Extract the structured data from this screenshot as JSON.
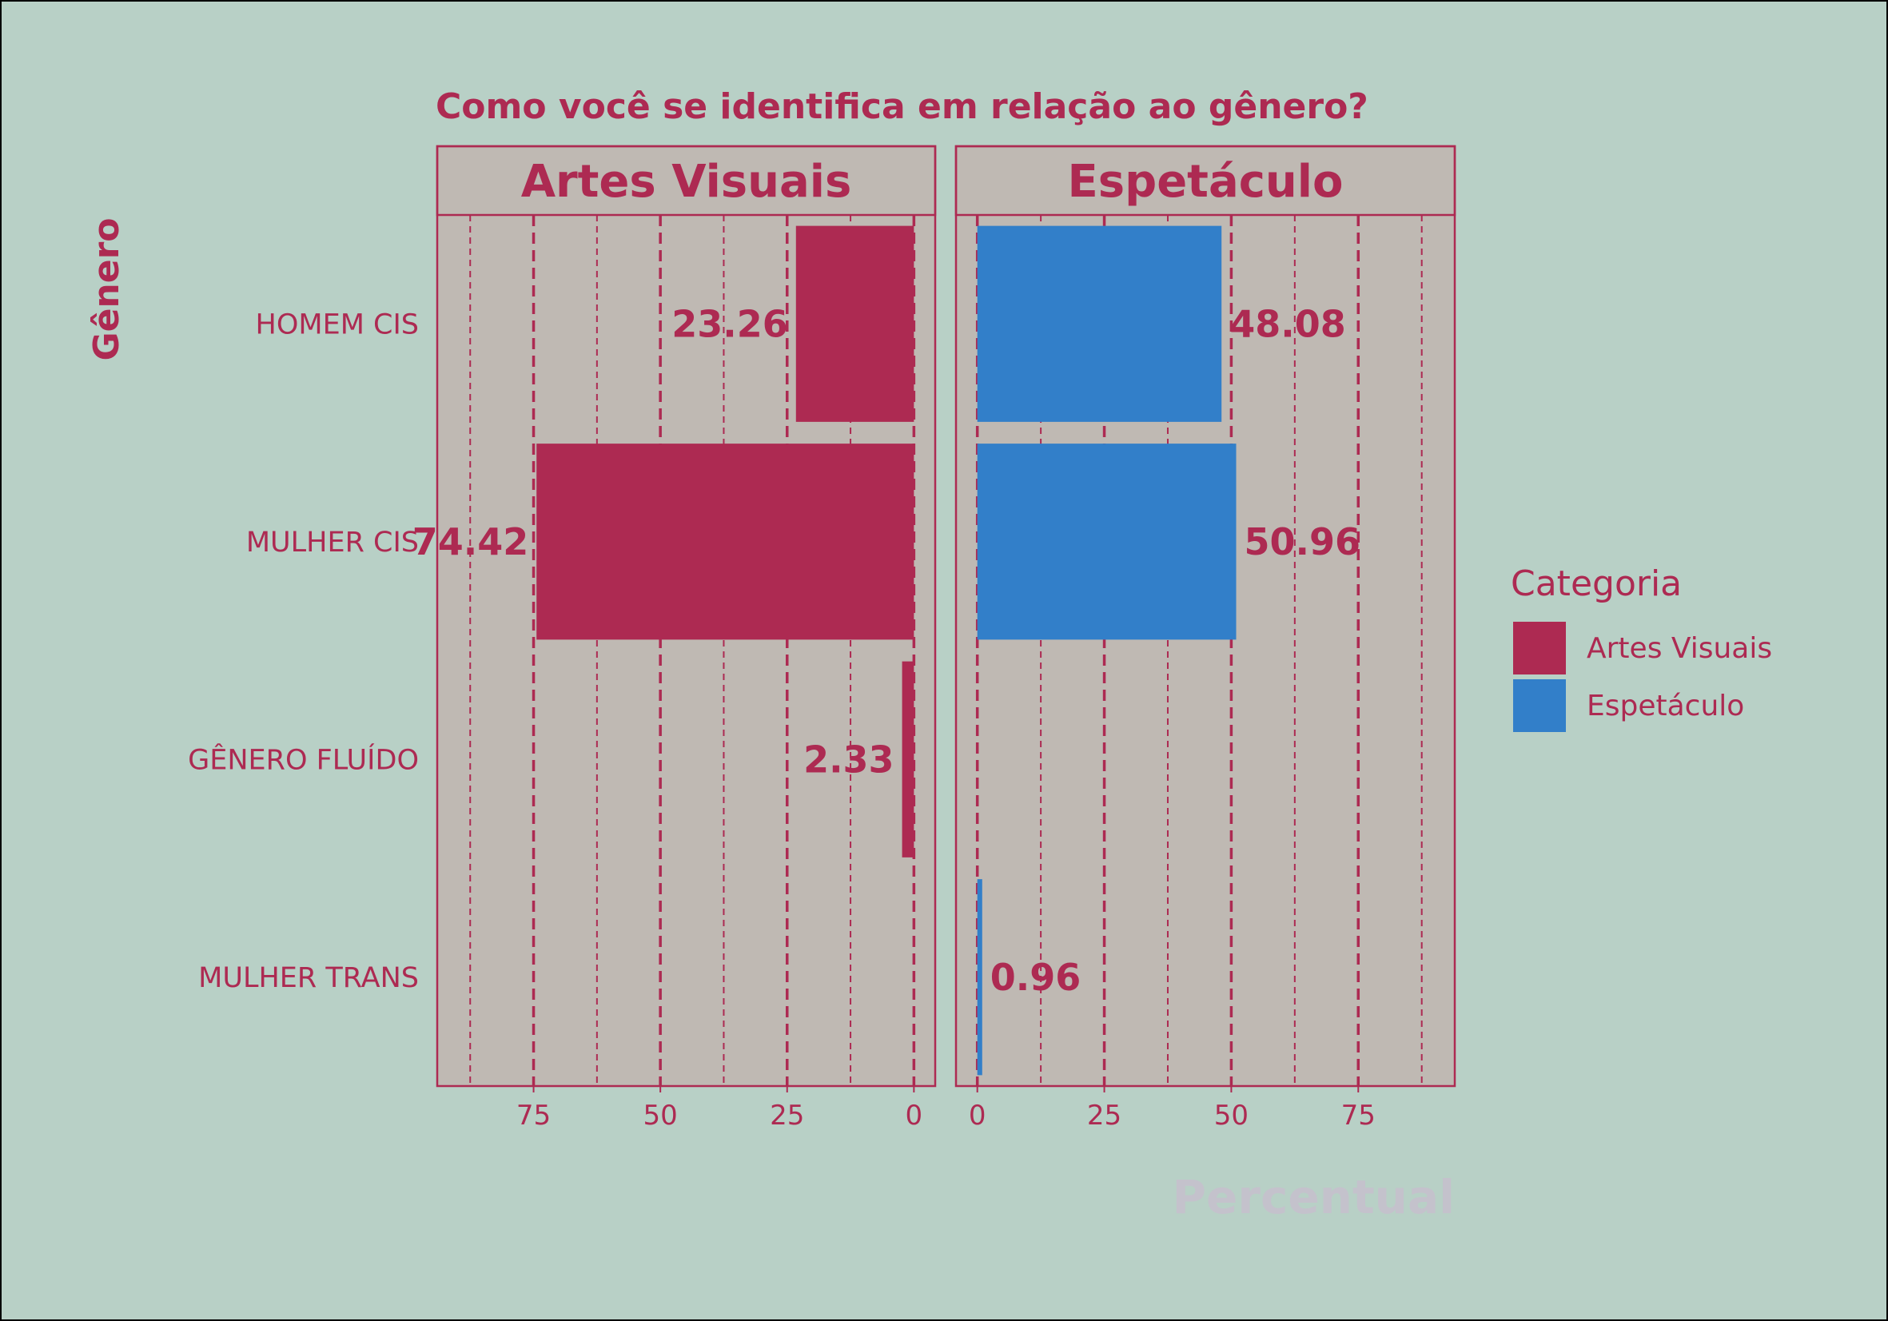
{
  "chart_data": {
    "type": "bar",
    "orientation": "horizontal",
    "title": "Como você se identifica em relação ao gênero?",
    "xlabel": "Percentual",
    "ylabel": "Gênero",
    "categories": [
      "HOMEM CIS",
      "MULHER CIS",
      "GÊNERO FLUÍDO",
      "MULHER TRANS"
    ],
    "facets": [
      {
        "name": "Artes Visuais",
        "direction": "reversed",
        "values": [
          23.26,
          74.42,
          2.33,
          null
        ],
        "labels": [
          "23.26",
          "74.42",
          "2.33",
          ""
        ],
        "ticks": [
          "75",
          "50",
          "25",
          "0"
        ],
        "color": "#ad2a52"
      },
      {
        "name": "Espetáculo",
        "direction": "normal",
        "values": [
          48.08,
          50.96,
          null,
          0.96
        ],
        "labels": [
          "48.08",
          "50.96",
          "",
          "0.96"
        ],
        "ticks": [
          "0",
          "25",
          "50",
          "75"
        ],
        "color": "#327fc9"
      }
    ],
    "xlim": [
      -4.2,
      94
    ],
    "legend": {
      "title": "Categoria",
      "position": "right",
      "items": [
        {
          "label": "Artes Visuais",
          "color": "#ad2a52"
        },
        {
          "label": "Espetáculo",
          "color": "#327fc9"
        }
      ]
    },
    "grid": true,
    "colors": {
      "background": "#b8d0c6",
      "panel": "#bfb9b3",
      "accent": "#ad2a52",
      "xlabel": "#c4c2cc"
    }
  }
}
